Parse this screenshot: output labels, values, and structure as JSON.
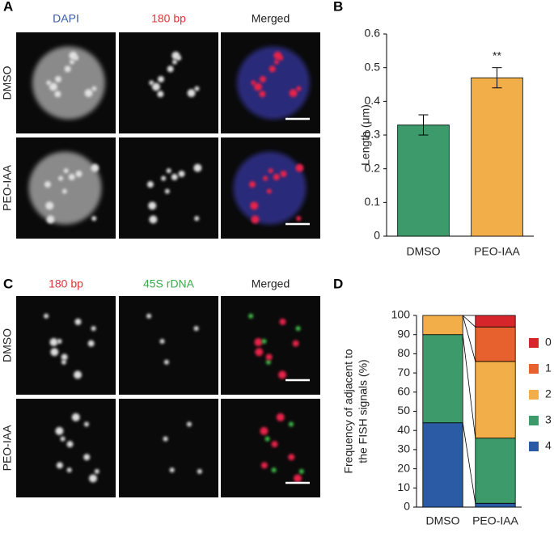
{
  "panels": {
    "labels": [
      "A",
      "B",
      "C",
      "D"
    ]
  },
  "figure_a": {
    "columns": [
      "DAPI",
      "180 bp",
      "Merged"
    ],
    "rows": [
      "DMSO",
      "PEO-IAA"
    ]
  },
  "figure_c": {
    "columns": [
      "180 bp",
      "45S rDNA",
      "Merged"
    ],
    "rows": [
      "DMSO",
      "PEO-IAA"
    ]
  },
  "chart_data": [
    {
      "type": "bar",
      "ylabel": "Length (μm)",
      "categories": [
        "DMSO",
        "PEO-IAA"
      ],
      "values": [
        0.33,
        0.47
      ],
      "errors": [
        0.03,
        0.03
      ],
      "colors": [
        "#3d9b6b",
        "#f2ae48"
      ],
      "annotations": [
        {
          "text": "**",
          "category": "PEO-IAA"
        }
      ],
      "ylim": [
        0,
        0.6
      ],
      "yticks": [
        0,
        0.1,
        0.2,
        0.3,
        0.4,
        0.5,
        0.6
      ],
      "grid": false
    },
    {
      "type": "stacked_bar",
      "ylabel": [
        "Frequency of adjacent  to",
        "the FISH signals (%)"
      ],
      "categories": [
        "DMSO",
        "PEO-IAA"
      ],
      "series": [
        {
          "name": "4",
          "color": "#2c5ba6",
          "values": [
            44,
            2
          ]
        },
        {
          "name": "3",
          "color": "#3d9b6b",
          "values": [
            46,
            34
          ]
        },
        {
          "name": "2",
          "color": "#f2ae48",
          "values": [
            10,
            40
          ]
        },
        {
          "name": "1",
          "color": "#e6612e",
          "values": [
            0,
            18
          ]
        },
        {
          "name": "0",
          "color": "#d7262b",
          "values": [
            0,
            6
          ]
        }
      ],
      "ylim": [
        0,
        100
      ],
      "yticks": [
        0,
        10,
        20,
        30,
        40,
        50,
        60,
        70,
        80,
        90,
        100
      ],
      "grid": false
    }
  ]
}
